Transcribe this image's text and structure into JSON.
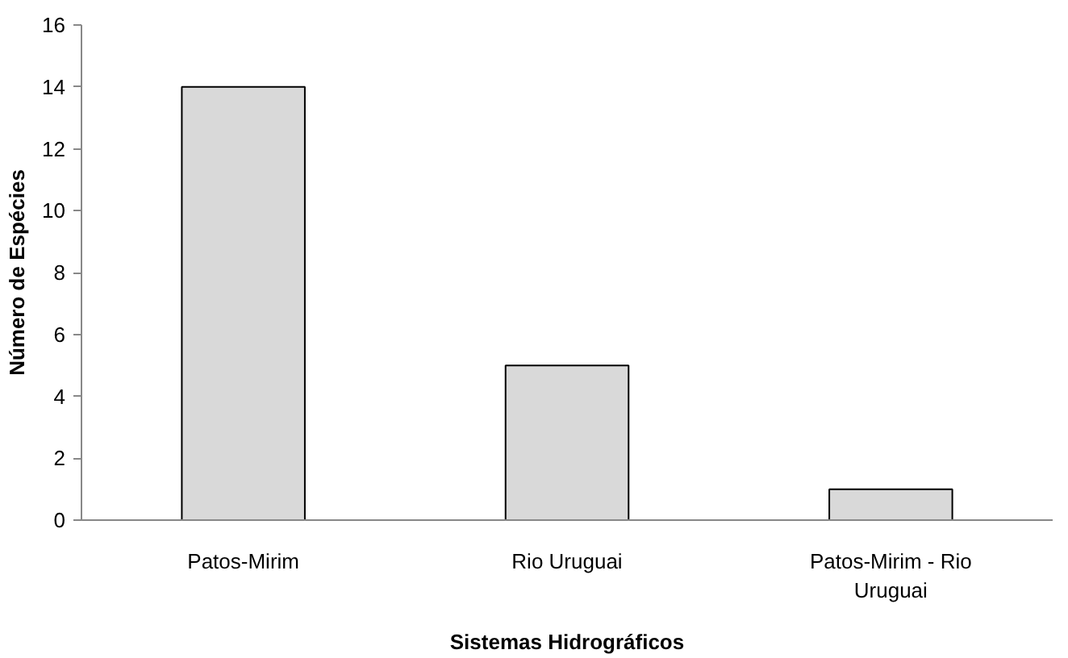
{
  "chart_data": {
    "type": "bar",
    "categories": [
      "Patos-Mirim",
      "Rio Uruguai",
      "Patos-Mirim - Rio Uruguai"
    ],
    "values": [
      14,
      5,
      1
    ],
    "color": "#d9d9d9",
    "xlabel": "Sistemas Hidrográficos",
    "ylabel": "Número de Espécies",
    "ylim": [
      0,
      16
    ],
    "yticks": [
      0,
      2,
      4,
      6,
      8,
      10,
      12,
      14,
      16
    ],
    "grid": false
  }
}
